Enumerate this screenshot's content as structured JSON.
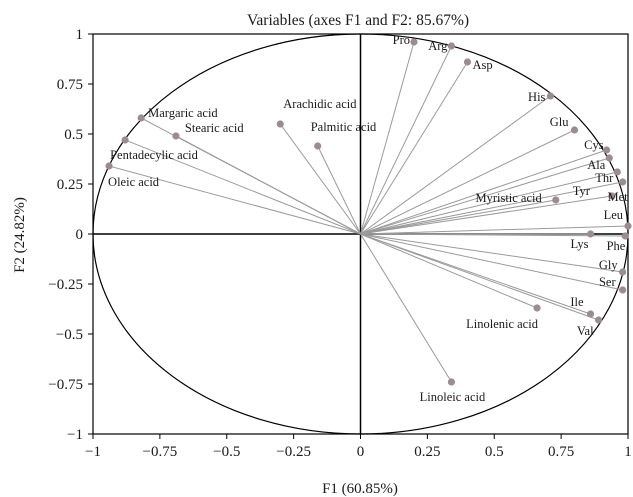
{
  "chart_data": {
    "type": "scatter",
    "title": "Variables (axes F1 and F2: 85.67%)",
    "xlabel": "F1 (60.85%)",
    "ylabel": "F2 (24.82%)",
    "xlim": [
      -1,
      1
    ],
    "ylim": [
      -1,
      1
    ],
    "x_ticks": [
      "−1",
      "−0.75",
      "−0.5",
      "−0.25",
      "0",
      "0.25",
      "0.5",
      "0.75",
      "1"
    ],
    "y_ticks": [
      "1",
      "0.75",
      "0.5",
      "0.25",
      "0",
      "−0.25",
      "−0.5",
      "−0.75",
      "−1"
    ],
    "x_tick_values": [
      -1,
      -0.75,
      -0.5,
      -0.25,
      0,
      0.25,
      0.5,
      0.75,
      1
    ],
    "y_tick_values": [
      1,
      0.75,
      0.5,
      0.25,
      0,
      -0.25,
      -0.5,
      -0.75,
      -1
    ],
    "grid": false,
    "correlation_circle": true,
    "vectors_from_origin": true,
    "colors": {
      "line": "#9a9a9a",
      "point": "#9c8c8f",
      "circle": "#000000",
      "axes": "#000000"
    },
    "points": [
      {
        "label": "Pro",
        "x": 0.2,
        "y": 0.96,
        "anchor": "end",
        "dx": -4,
        "dy": 2
      },
      {
        "label": "Arg",
        "x": 0.34,
        "y": 0.94,
        "anchor": "end",
        "dx": -4,
        "dy": 4
      },
      {
        "label": "Asp",
        "x": 0.4,
        "y": 0.86,
        "anchor": "start",
        "dx": 5,
        "dy": 7
      },
      {
        "label": "His",
        "x": 0.71,
        "y": 0.69,
        "anchor": "end",
        "dx": -5,
        "dy": 5
      },
      {
        "label": "Glu",
        "x": 0.8,
        "y": 0.52,
        "anchor": "end",
        "dx": -6,
        "dy": -4
      },
      {
        "label": "Cys",
        "x": 0.92,
        "y": 0.42,
        "anchor": "end",
        "dx": -3,
        "dy": -1
      },
      {
        "label": "Ala",
        "x": 0.93,
        "y": 0.38,
        "anchor": "end",
        "dx": -4,
        "dy": 11
      },
      {
        "label": "Thr",
        "x": 0.96,
        "y": 0.31,
        "anchor": "end",
        "dx": -4,
        "dy": 10
      },
      {
        "label": "Met",
        "x": 0.98,
        "y": 0.26,
        "anchor": "end",
        "dx": 5,
        "dy": 19
      },
      {
        "label": "Tyr",
        "x": 0.94,
        "y": 0.19,
        "anchor": "end",
        "dx": -22,
        "dy": -1
      },
      {
        "label": "Myristic acid",
        "x": 0.73,
        "y": 0.17,
        "anchor": "end",
        "dx": -14,
        "dy": 2
      },
      {
        "label": "Leu",
        "x": 1.0,
        "y": 0.04,
        "anchor": "end",
        "dx": -5,
        "dy": -7
      },
      {
        "label": "Lys",
        "x": 0.86,
        "y": 0.0,
        "anchor": "end",
        "dx": -2,
        "dy": 14
      },
      {
        "label": "Phe",
        "x": 0.99,
        "y": -0.01,
        "anchor": "end",
        "dx": 0,
        "dy": 14
      },
      {
        "label": "Gly",
        "x": 0.98,
        "y": -0.19,
        "anchor": "end",
        "dx": -5,
        "dy": -3
      },
      {
        "label": "Ser",
        "x": 0.98,
        "y": -0.28,
        "anchor": "end",
        "dx": -7,
        "dy": -4
      },
      {
        "label": "Ile",
        "x": 0.86,
        "y": -0.4,
        "anchor": "end",
        "dx": -7,
        "dy": -8
      },
      {
        "label": "Val",
        "x": 0.89,
        "y": -0.43,
        "anchor": "end",
        "dx": -5,
        "dy": 15
      },
      {
        "label": "Linolenic acid",
        "x": 0.66,
        "y": -0.37,
        "anchor": "middle",
        "dx": -35,
        "dy": 20
      },
      {
        "label": "Linoleic acid",
        "x": 0.34,
        "y": -0.74,
        "anchor": "middle",
        "dx": 1,
        "dy": 19
      },
      {
        "label": "Palmitic acid",
        "x": -0.16,
        "y": 0.44,
        "anchor": "start",
        "dx": -7,
        "dy": -15
      },
      {
        "label": "Arachidic acid",
        "x": -0.3,
        "y": 0.55,
        "anchor": "start",
        "dx": 3,
        "dy": -16
      },
      {
        "label": "Margaric acid",
        "x": -0.82,
        "y": 0.58,
        "anchor": "start",
        "dx": 7,
        "dy": -1
      },
      {
        "label": "Stearic acid",
        "x": -0.69,
        "y": 0.49,
        "anchor": "start",
        "dx": 9,
        "dy": -4
      },
      {
        "label": "Pentadecylic acid",
        "x": -0.88,
        "y": 0.47,
        "anchor": "start",
        "dx": -15,
        "dy": 19
      },
      {
        "label": "Oleic acid",
        "x": -0.94,
        "y": 0.34,
        "anchor": "start",
        "dx": -1,
        "dy": 20
      }
    ]
  }
}
